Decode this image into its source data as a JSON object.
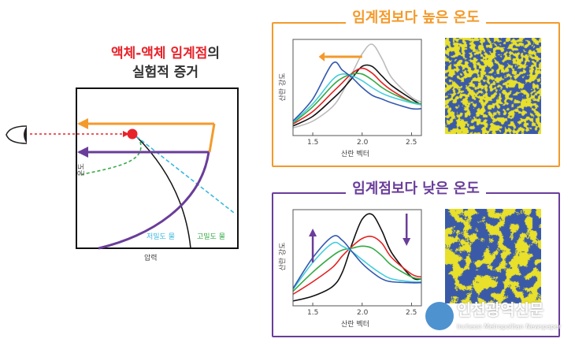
{
  "left_panel": {
    "title_red": "액체-액체 임계점",
    "title_suffix": "의",
    "title_line2": "실험적 증거",
    "y_label": "온도",
    "x_label": "압력",
    "low_density_label": "저밀도 물",
    "high_density_label": "고밀도 물",
    "colors": {
      "orange": "#f39a2b",
      "purple": "#6a3d9a",
      "critical_point": "#e8232a",
      "low_density": "#3cb8e0",
      "high_density": "#3aaa4a"
    },
    "icons": [
      "eye-icon"
    ]
  },
  "chart_data": [
    {
      "type": "line",
      "title": "임계점보다 높은 온도",
      "xlabel": "산란 벡터",
      "ylabel": "산란 강도",
      "xlim": [
        1.3,
        2.6
      ],
      "ylim": [
        0,
        1
      ],
      "xticks": [
        "1.5",
        "2.0",
        "2.5"
      ],
      "frame_color": "#f39a2b",
      "annotation": "arrow pointing left (peak shifts to lower scattering vector)",
      "x": [
        1.3,
        1.5,
        1.7,
        1.8,
        1.9,
        2.0,
        2.1,
        2.2,
        2.3,
        2.5,
        2.6
      ],
      "series": [
        {
          "color": "#bbbbbb",
          "values": [
            0.08,
            0.15,
            0.3,
            0.45,
            0.65,
            0.85,
            0.95,
            0.8,
            0.6,
            0.4,
            0.35
          ]
        },
        {
          "color": "#111111",
          "values": [
            0.1,
            0.2,
            0.38,
            0.48,
            0.6,
            0.72,
            0.72,
            0.62,
            0.52,
            0.38,
            0.32
          ]
        },
        {
          "color": "#e22222",
          "values": [
            0.12,
            0.25,
            0.45,
            0.55,
            0.65,
            0.7,
            0.65,
            0.55,
            0.47,
            0.35,
            0.32
          ]
        },
        {
          "color": "#33aa44",
          "values": [
            0.13,
            0.3,
            0.52,
            0.6,
            0.64,
            0.64,
            0.58,
            0.5,
            0.44,
            0.35,
            0.33
          ]
        },
        {
          "color": "#44ccdd",
          "values": [
            0.14,
            0.33,
            0.58,
            0.64,
            0.62,
            0.57,
            0.5,
            0.44,
            0.4,
            0.34,
            0.32
          ]
        },
        {
          "color": "#3358b0",
          "values": [
            0.15,
            0.38,
            0.75,
            0.68,
            0.6,
            0.5,
            0.42,
            0.38,
            0.34,
            0.28,
            0.28
          ]
        }
      ]
    },
    {
      "type": "line",
      "title": "임계점보다 낮은 온도",
      "xlabel": "산란 벡터",
      "ylabel": "산란 강도",
      "xlim": [
        1.3,
        2.6
      ],
      "ylim": [
        0,
        1
      ],
      "xticks": [
        "1.5",
        "2.0",
        "2.5"
      ],
      "frame_color": "#6a3d9a",
      "annotation": "up arrow at low q, down arrow at high q",
      "x": [
        1.3,
        1.5,
        1.7,
        1.8,
        1.9,
        2.0,
        2.1,
        2.2,
        2.3,
        2.5,
        2.6
      ],
      "series": [
        {
          "color": "#111111",
          "values": [
            0.05,
            0.1,
            0.2,
            0.35,
            0.65,
            0.9,
            0.95,
            0.78,
            0.55,
            0.3,
            0.28
          ]
        },
        {
          "color": "#e22222",
          "values": [
            0.12,
            0.25,
            0.4,
            0.52,
            0.62,
            0.7,
            0.72,
            0.65,
            0.5,
            0.33,
            0.3
          ]
        },
        {
          "color": "#33aa44",
          "values": [
            0.15,
            0.35,
            0.52,
            0.58,
            0.6,
            0.62,
            0.6,
            0.52,
            0.42,
            0.3,
            0.28
          ]
        },
        {
          "color": "#44ccdd",
          "values": [
            0.17,
            0.45,
            0.65,
            0.62,
            0.56,
            0.48,
            0.4,
            0.33,
            0.28,
            0.25,
            0.25
          ]
        },
        {
          "color": "#3358b0",
          "values": [
            0.18,
            0.5,
            0.72,
            0.68,
            0.56,
            0.44,
            0.35,
            0.28,
            0.25,
            0.24,
            0.24
          ]
        }
      ]
    }
  ],
  "simulation_maps": {
    "colors": [
      "#e8e02a",
      "#3a5aa8"
    ],
    "top": "fine mixed pattern",
    "bottom": "coarse domains"
  },
  "watermark": {
    "name": "인천광역신문",
    "subtitle": "Incheon Metropolitan Newspaper"
  }
}
